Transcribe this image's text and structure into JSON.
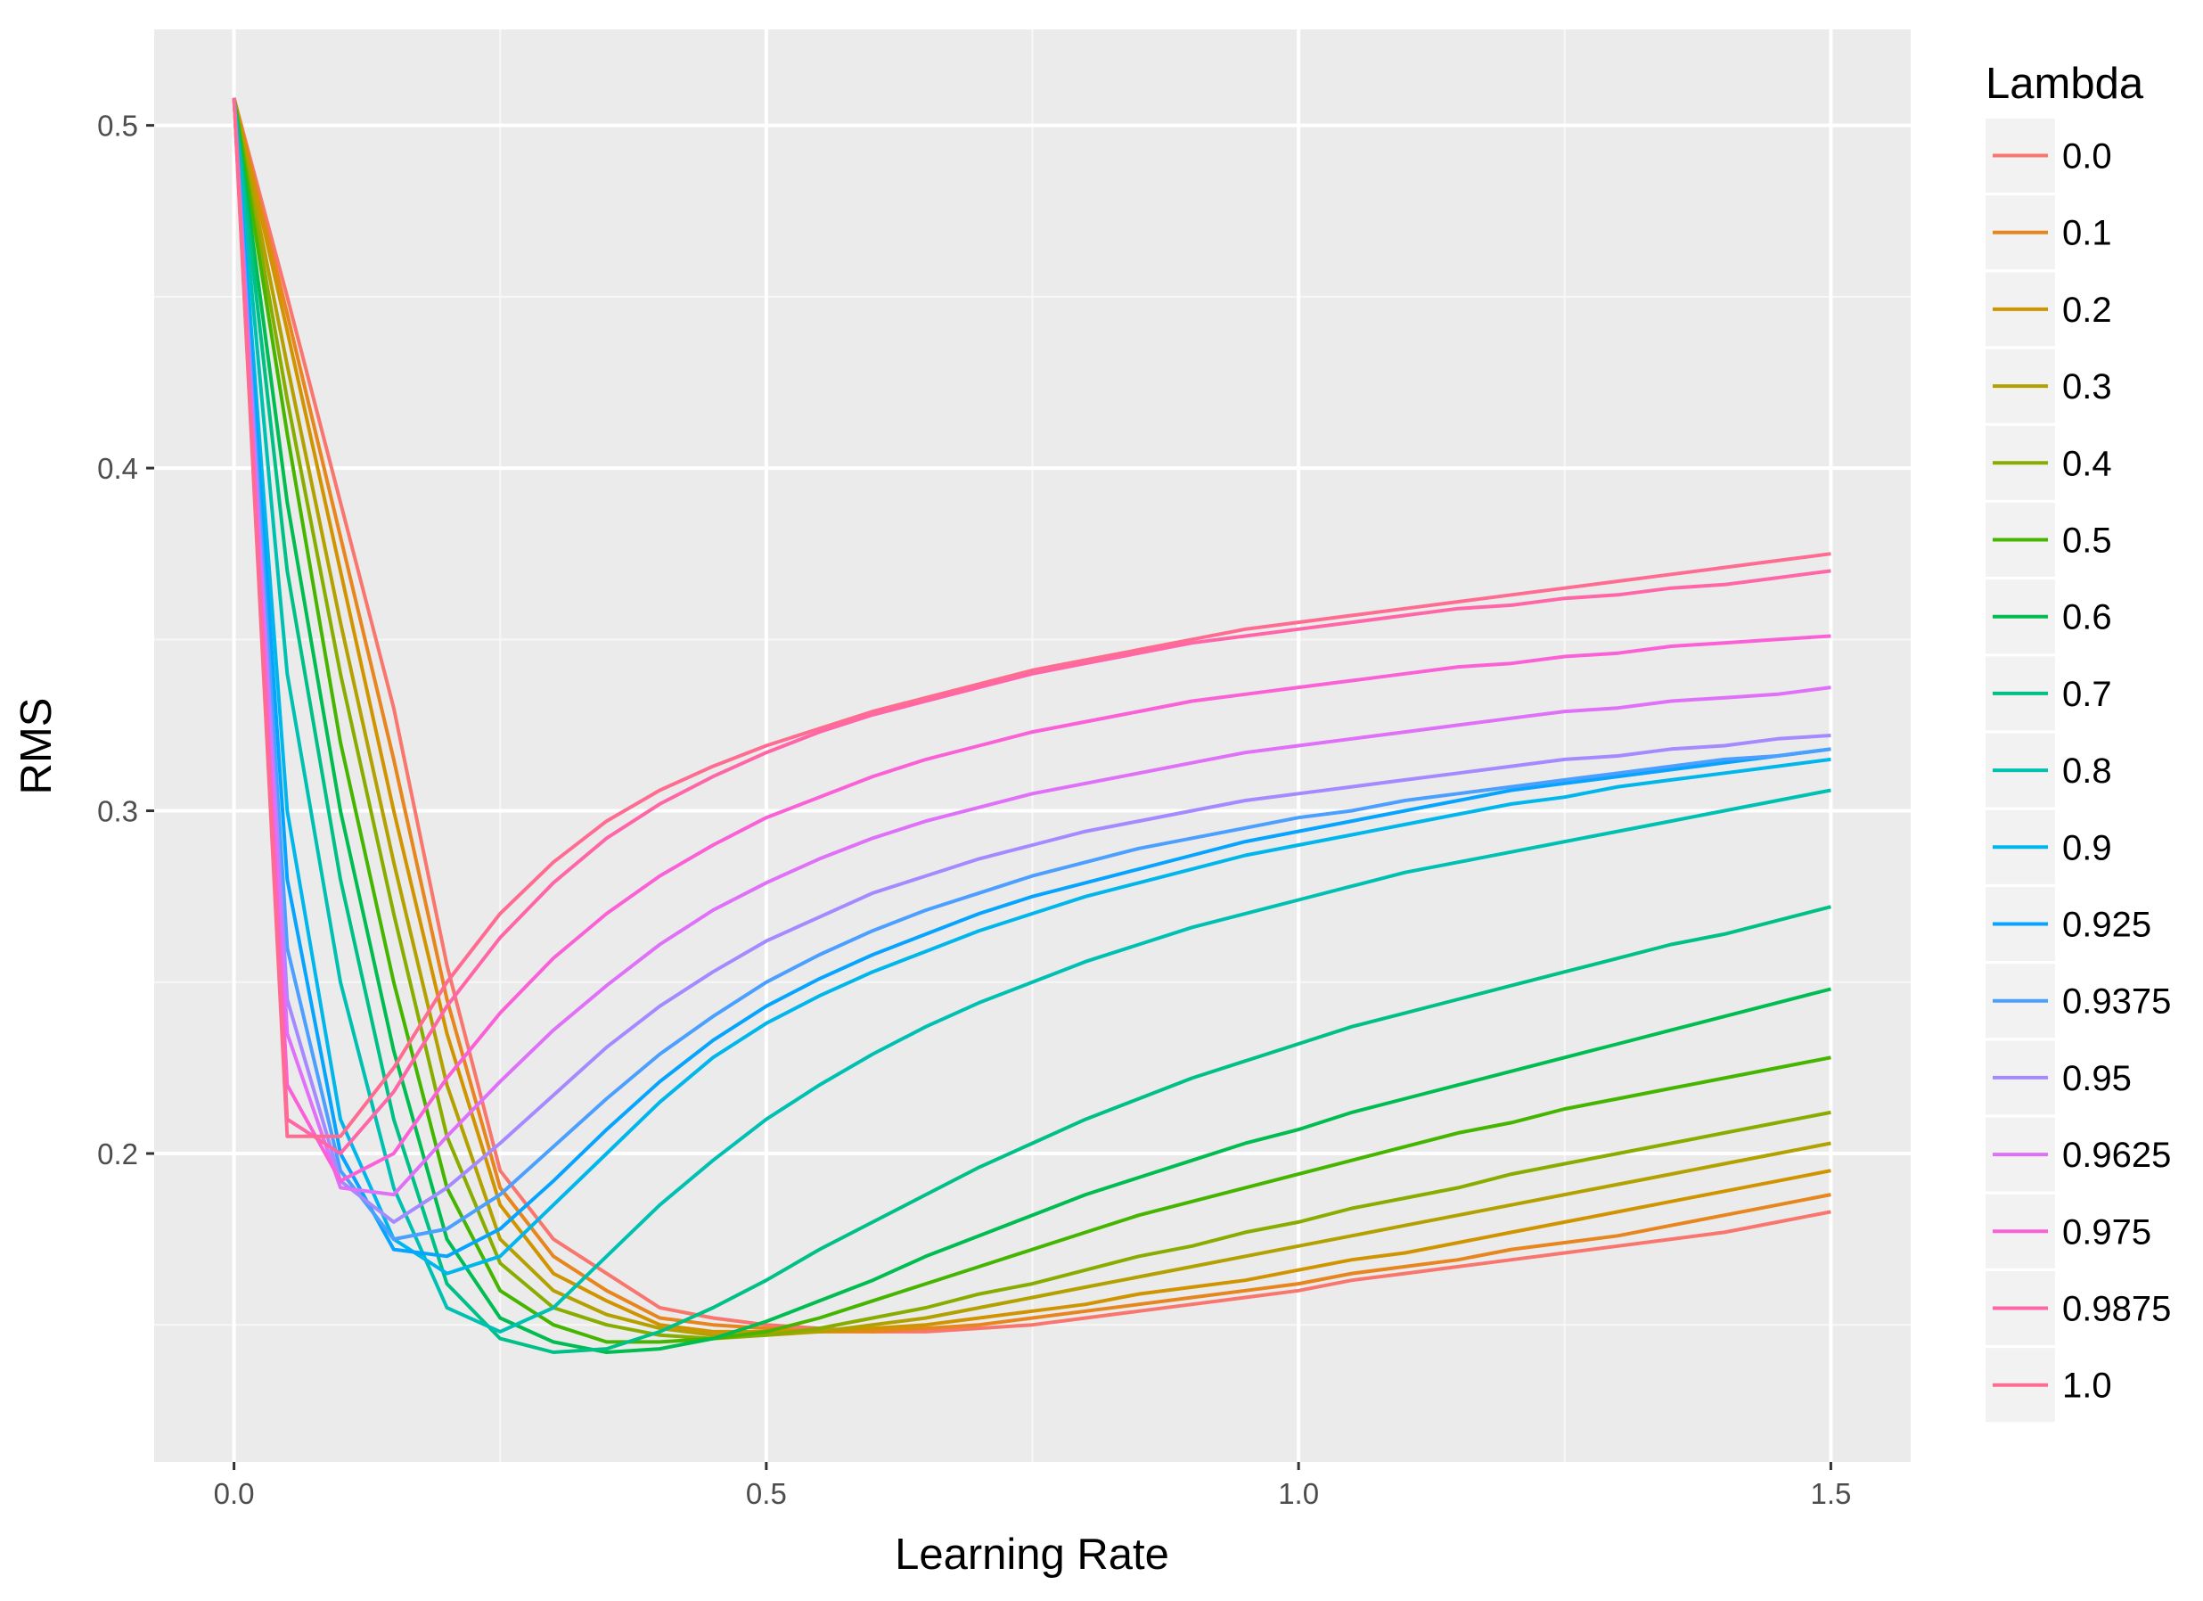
{
  "chart_data": {
    "type": "line",
    "title": "",
    "xlabel": "Learning Rate",
    "ylabel": "RMS",
    "xlim": [
      -0.075,
      1.575
    ],
    "ylim": [
      0.11,
      0.528
    ],
    "x_ticks": [
      "0.0",
      "0.5",
      "1.0",
      "1.5"
    ],
    "x_tick_values": [
      0.0,
      0.5,
      1.0,
      1.5
    ],
    "y_ticks": [
      "0.2",
      "0.3",
      "0.4",
      "0.5"
    ],
    "y_tick_values": [
      0.2,
      0.3,
      0.4,
      0.5
    ],
    "grid": true,
    "background": "#ebebeb",
    "legend": {
      "title": "Lambda",
      "placement": "right"
    },
    "x": [
      0.0,
      0.05,
      0.1,
      0.15,
      0.2,
      0.25,
      0.3,
      0.35,
      0.4,
      0.45,
      0.5,
      0.55,
      0.6,
      0.65,
      0.7,
      0.75,
      0.8,
      0.85,
      0.9,
      0.95,
      1.0,
      1.05,
      1.1,
      1.15,
      1.2,
      1.25,
      1.3,
      1.35,
      1.4,
      1.45,
      1.5
    ],
    "series": [
      {
        "name": "0.0",
        "color": "#F8766D",
        "values": [
          0.508,
          0.45,
          0.39,
          0.33,
          0.255,
          0.195,
          0.175,
          0.165,
          0.155,
          0.152,
          0.15,
          0.149,
          0.148,
          0.148,
          0.149,
          0.15,
          0.152,
          0.154,
          0.156,
          0.158,
          0.16,
          0.163,
          0.165,
          0.167,
          0.169,
          0.171,
          0.173,
          0.175,
          0.177,
          0.18,
          0.183
        ]
      },
      {
        "name": "0.1",
        "color": "#E7851E",
        "values": [
          0.508,
          0.445,
          0.38,
          0.315,
          0.245,
          0.19,
          0.17,
          0.16,
          0.152,
          0.15,
          0.149,
          0.148,
          0.148,
          0.149,
          0.15,
          0.152,
          0.154,
          0.156,
          0.158,
          0.16,
          0.162,
          0.165,
          0.167,
          0.169,
          0.172,
          0.174,
          0.176,
          0.179,
          0.182,
          0.185,
          0.188
        ]
      },
      {
        "name": "0.2",
        "color": "#D09400",
        "values": [
          0.508,
          0.44,
          0.37,
          0.3,
          0.235,
          0.185,
          0.165,
          0.157,
          0.15,
          0.148,
          0.148,
          0.148,
          0.149,
          0.15,
          0.152,
          0.154,
          0.156,
          0.159,
          0.161,
          0.163,
          0.166,
          0.169,
          0.171,
          0.174,
          0.177,
          0.18,
          0.183,
          0.186,
          0.189,
          0.192,
          0.195
        ]
      },
      {
        "name": "0.3",
        "color": "#B2A100",
        "values": [
          0.508,
          0.43,
          0.355,
          0.285,
          0.22,
          0.175,
          0.16,
          0.153,
          0.149,
          0.147,
          0.147,
          0.148,
          0.15,
          0.152,
          0.155,
          0.158,
          0.161,
          0.164,
          0.167,
          0.17,
          0.173,
          0.176,
          0.179,
          0.182,
          0.185,
          0.188,
          0.191,
          0.194,
          0.197,
          0.2,
          0.203
        ]
      },
      {
        "name": "0.4",
        "color": "#89AC00",
        "values": [
          0.508,
          0.42,
          0.34,
          0.27,
          0.205,
          0.168,
          0.155,
          0.15,
          0.147,
          0.146,
          0.147,
          0.149,
          0.152,
          0.155,
          0.159,
          0.162,
          0.166,
          0.17,
          0.173,
          0.177,
          0.18,
          0.184,
          0.187,
          0.19,
          0.194,
          0.197,
          0.2,
          0.203,
          0.206,
          0.209,
          0.212
        ]
      },
      {
        "name": "0.5",
        "color": "#45B500",
        "values": [
          0.508,
          0.41,
          0.32,
          0.25,
          0.19,
          0.16,
          0.15,
          0.145,
          0.145,
          0.146,
          0.148,
          0.152,
          0.157,
          0.162,
          0.167,
          0.172,
          0.177,
          0.182,
          0.186,
          0.19,
          0.194,
          0.198,
          0.202,
          0.206,
          0.209,
          0.213,
          0.216,
          0.219,
          0.222,
          0.225,
          0.228
        ]
      },
      {
        "name": "0.6",
        "color": "#00BC51",
        "values": [
          0.508,
          0.39,
          0.3,
          0.23,
          0.175,
          0.152,
          0.145,
          0.142,
          0.143,
          0.146,
          0.151,
          0.157,
          0.163,
          0.17,
          0.176,
          0.182,
          0.188,
          0.193,
          0.198,
          0.203,
          0.207,
          0.212,
          0.216,
          0.22,
          0.224,
          0.228,
          0.232,
          0.236,
          0.24,
          0.244,
          0.248
        ]
      },
      {
        "name": "0.7",
        "color": "#00C087",
        "values": [
          0.508,
          0.37,
          0.28,
          0.21,
          0.162,
          0.146,
          0.142,
          0.143,
          0.148,
          0.155,
          0.163,
          0.172,
          0.18,
          0.188,
          0.196,
          0.203,
          0.21,
          0.216,
          0.222,
          0.227,
          0.232,
          0.237,
          0.241,
          0.245,
          0.249,
          0.253,
          0.257,
          0.261,
          0.264,
          0.268,
          0.272
        ]
      },
      {
        "name": "0.8",
        "color": "#00C0B2",
        "values": [
          0.508,
          0.34,
          0.25,
          0.19,
          0.155,
          0.148,
          0.155,
          0.17,
          0.185,
          0.198,
          0.21,
          0.22,
          0.229,
          0.237,
          0.244,
          0.25,
          0.256,
          0.261,
          0.266,
          0.27,
          0.274,
          0.278,
          0.282,
          0.285,
          0.288,
          0.291,
          0.294,
          0.297,
          0.3,
          0.303,
          0.306
        ]
      },
      {
        "name": "0.9",
        "color": "#00B6EB",
        "values": [
          0.508,
          0.3,
          0.21,
          0.175,
          0.165,
          0.17,
          0.185,
          0.2,
          0.215,
          0.228,
          0.238,
          0.246,
          0.253,
          0.259,
          0.265,
          0.27,
          0.275,
          0.279,
          0.283,
          0.287,
          0.29,
          0.293,
          0.296,
          0.299,
          0.302,
          0.304,
          0.307,
          0.309,
          0.311,
          0.313,
          0.315
        ]
      },
      {
        "name": "0.925",
        "color": "#06A4FF",
        "values": [
          0.508,
          0.28,
          0.2,
          0.172,
          0.17,
          0.178,
          0.192,
          0.207,
          0.221,
          0.233,
          0.243,
          0.251,
          0.258,
          0.264,
          0.27,
          0.275,
          0.279,
          0.283,
          0.287,
          0.291,
          0.294,
          0.297,
          0.3,
          0.303,
          0.306,
          0.308,
          0.31,
          0.312,
          0.314,
          0.316,
          0.318
        ]
      },
      {
        "name": "0.9375",
        "color": "#4B9FFF",
        "values": [
          0.508,
          0.26,
          0.195,
          0.175,
          0.178,
          0.188,
          0.202,
          0.216,
          0.229,
          0.24,
          0.25,
          0.258,
          0.265,
          0.271,
          0.276,
          0.281,
          0.285,
          0.289,
          0.292,
          0.295,
          0.298,
          0.3,
          0.303,
          0.305,
          0.307,
          0.309,
          0.311,
          0.313,
          0.315,
          0.316,
          0.318
        ]
      },
      {
        "name": "0.95",
        "color": "#A58AFF",
        "values": [
          0.508,
          0.245,
          0.192,
          0.18,
          0.19,
          0.203,
          0.217,
          0.231,
          0.243,
          0.253,
          0.262,
          0.269,
          0.276,
          0.281,
          0.286,
          0.29,
          0.294,
          0.297,
          0.3,
          0.303,
          0.305,
          0.307,
          0.309,
          0.311,
          0.313,
          0.315,
          0.316,
          0.318,
          0.319,
          0.321,
          0.322
        ]
      },
      {
        "name": "0.9625",
        "color": "#DF70F8",
        "values": [
          0.508,
          0.235,
          0.19,
          0.188,
          0.205,
          0.221,
          0.236,
          0.249,
          0.261,
          0.271,
          0.279,
          0.286,
          0.292,
          0.297,
          0.301,
          0.305,
          0.308,
          0.311,
          0.314,
          0.317,
          0.319,
          0.321,
          0.323,
          0.325,
          0.327,
          0.329,
          0.33,
          0.332,
          0.333,
          0.334,
          0.336
        ]
      },
      {
        "name": "0.975",
        "color": "#FB61D7",
        "values": [
          0.508,
          0.22,
          0.192,
          0.2,
          0.222,
          0.241,
          0.257,
          0.27,
          0.281,
          0.29,
          0.298,
          0.304,
          0.31,
          0.315,
          0.319,
          0.323,
          0.326,
          0.329,
          0.332,
          0.334,
          0.336,
          0.338,
          0.34,
          0.342,
          0.343,
          0.345,
          0.346,
          0.348,
          0.349,
          0.35,
          0.351
        ]
      },
      {
        "name": "0.9875",
        "color": "#FF66A8",
        "values": [
          0.508,
          0.21,
          0.2,
          0.218,
          0.243,
          0.263,
          0.279,
          0.292,
          0.302,
          0.31,
          0.317,
          0.323,
          0.328,
          0.332,
          0.336,
          0.34,
          0.343,
          0.346,
          0.349,
          0.351,
          0.353,
          0.355,
          0.357,
          0.359,
          0.36,
          0.362,
          0.363,
          0.365,
          0.366,
          0.368,
          0.37
        ]
      },
      {
        "name": "1.0",
        "color": "#FF6C91",
        "values": [
          0.508,
          0.205,
          0.205,
          0.225,
          0.25,
          0.27,
          0.285,
          0.297,
          0.306,
          0.313,
          0.319,
          0.324,
          0.329,
          0.333,
          0.337,
          0.341,
          0.344,
          0.347,
          0.35,
          0.353,
          0.355,
          0.357,
          0.359,
          0.361,
          0.363,
          0.365,
          0.367,
          0.369,
          0.371,
          0.373,
          0.375
        ]
      }
    ]
  }
}
